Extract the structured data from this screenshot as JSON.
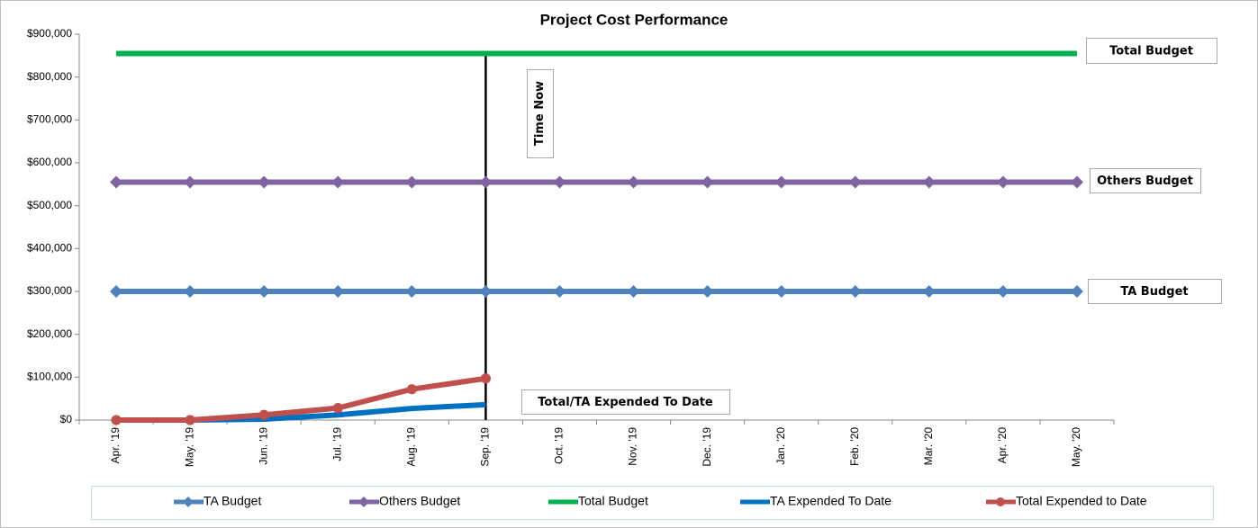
{
  "chart_data": {
    "type": "line",
    "title": "Project Cost Performance",
    "categories": [
      "Apr. '19",
      "May. '19",
      "Jun. '19",
      "Jul. '19",
      "Aug. '19",
      "Sep. '19",
      "Oct. '19",
      "Nov. '19",
      "Dec. '19",
      "Jan. '20",
      "Feb. '20",
      "Mar. '20",
      "Apr. '20",
      "May. '20"
    ],
    "series": [
      {
        "name": "TA Budget",
        "color": "#4f81bd",
        "marker": "diamond",
        "values": [
          300000,
          300000,
          300000,
          300000,
          300000,
          300000,
          300000,
          300000,
          300000,
          300000,
          300000,
          300000,
          300000,
          300000
        ]
      },
      {
        "name": "Others Budget",
        "color": "#8064a2",
        "marker": "diamond",
        "values": [
          555000,
          555000,
          555000,
          555000,
          555000,
          555000,
          555000,
          555000,
          555000,
          555000,
          555000,
          555000,
          555000,
          555000
        ]
      },
      {
        "name": "Total Budget",
        "color": "#00b050",
        "marker": "none",
        "values": [
          855000,
          855000,
          855000,
          855000,
          855000,
          855000,
          855000,
          855000,
          855000,
          855000,
          855000,
          855000,
          855000,
          855000
        ]
      },
      {
        "name": "TA Expended To Date",
        "color": "#0070c0",
        "marker": "none",
        "values": [
          0,
          0,
          2000,
          12000,
          27000,
          36000,
          null,
          null,
          null,
          null,
          null,
          null,
          null,
          null
        ]
      },
      {
        "name": "Total Expended to Date",
        "color": "#c0504d",
        "marker": "circle",
        "values": [
          0,
          0,
          12000,
          28000,
          72000,
          97000,
          null,
          null,
          null,
          null,
          null,
          null,
          null,
          null
        ]
      }
    ],
    "ylim": [
      0,
      900000
    ],
    "yticks": [
      {
        "value": 0,
        "label": "$0"
      },
      {
        "value": 100000,
        "label": "$100,000"
      },
      {
        "value": 200000,
        "label": "$200,000"
      },
      {
        "value": 300000,
        "label": "$300,000"
      },
      {
        "value": 400000,
        "label": "$400,000"
      },
      {
        "value": 500000,
        "label": "$500,000"
      },
      {
        "value": 600000,
        "label": "$600,000"
      },
      {
        "value": 700000,
        "label": "$700,000"
      },
      {
        "value": 800000,
        "label": "$800,000"
      },
      {
        "value": 900000,
        "label": "$900,000"
      }
    ],
    "annotations": [
      "Total Budget",
      "Others Budget",
      "TA Budget",
      "Total/TA Expended To Date",
      "Time Now"
    ],
    "legend": "bottom",
    "grid": false
  }
}
